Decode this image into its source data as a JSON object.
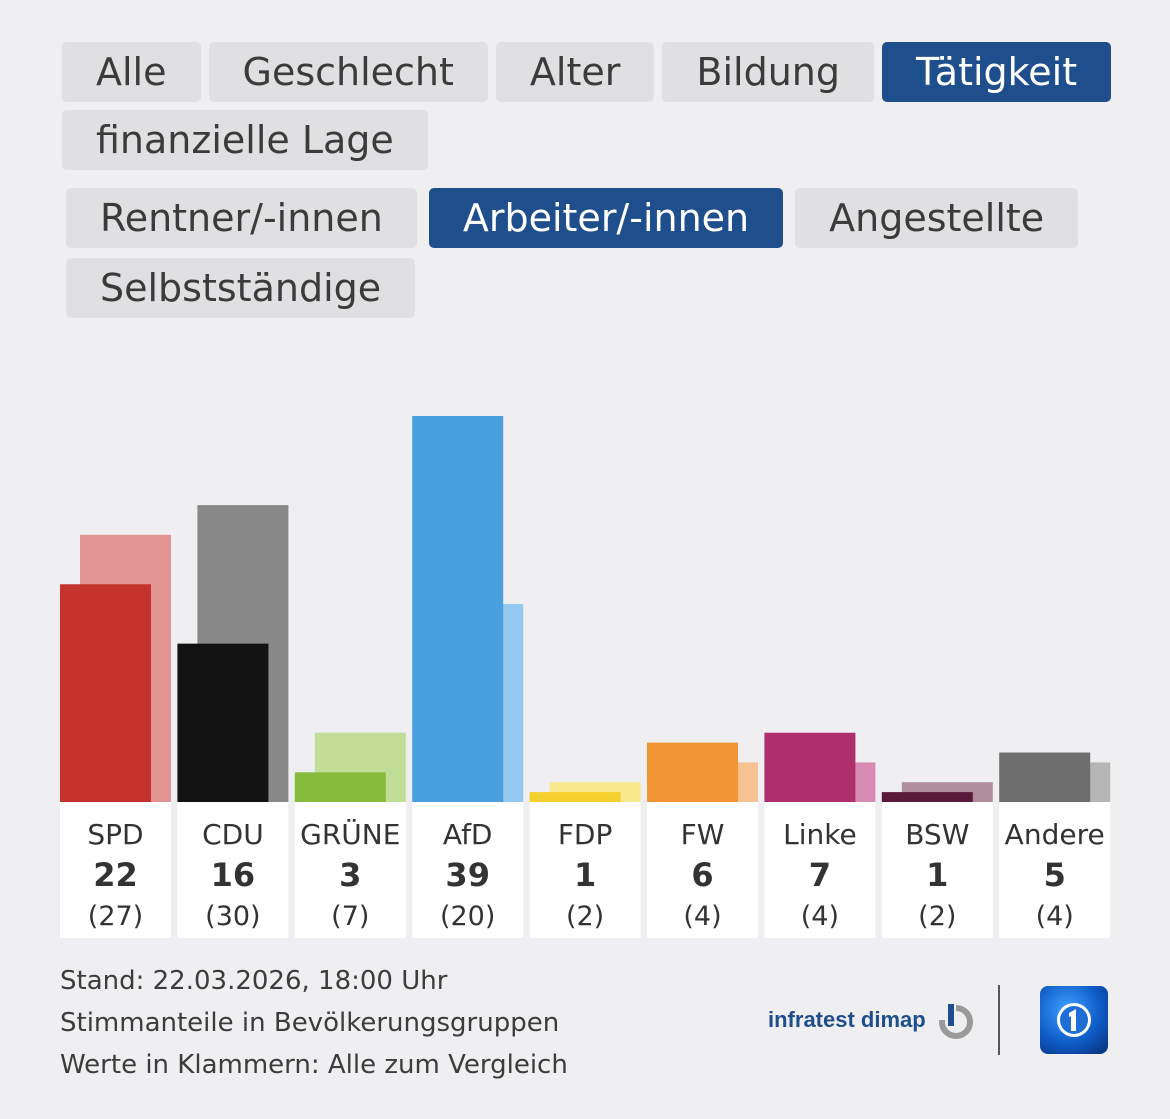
{
  "tabs_main": [
    {
      "label": "Alle",
      "active": false
    },
    {
      "label": "Geschlecht",
      "active": false
    },
    {
      "label": "Alter",
      "active": false
    },
    {
      "label": "Bildung",
      "active": false
    },
    {
      "label": "Tätigkeit",
      "active": true
    },
    {
      "label": "finanzielle Lage",
      "active": false
    }
  ],
  "tabs_sub": [
    {
      "label": "Rentner/-innen",
      "active": false
    },
    {
      "label": "Arbeiter/-innen",
      "active": true
    },
    {
      "label": "Angestellte",
      "active": false
    },
    {
      "label": "Selbstständige",
      "active": false
    }
  ],
  "chart_data": {
    "type": "bar",
    "categories": [
      "SPD",
      "CDU",
      "GRÜNE",
      "AfD",
      "FDP",
      "FW",
      "Linke",
      "BSW",
      "Andere"
    ],
    "series": [
      {
        "values": [
          22,
          16,
          3,
          39,
          1,
          6,
          7,
          1,
          5
        ]
      },
      {
        "values": [
          27,
          30,
          7,
          20,
          2,
          4,
          4,
          2,
          4
        ]
      }
    ],
    "value_labels": [
      "22",
      "16",
      "3",
      "39",
      "1",
      "6",
      "7",
      "1",
      "5"
    ],
    "comparison_labels": [
      "(27)",
      "(30)",
      "(7)",
      "(20)",
      "(2)",
      "(4)",
      "(4)",
      "(2)",
      "(4)"
    ],
    "colors": [
      "#c4332c",
      "#121212",
      "#87bb3c",
      "#4a9fdf",
      "#f4d02e",
      "#f19433",
      "#ad2f6c",
      "#5a1b3a",
      "#6e6e6e"
    ],
    "comparison_colors": [
      "#e19492",
      "#888888",
      "#c2de96",
      "#93c9f0",
      "#fae88d",
      "#f7c291",
      "#d88cb4",
      "#b08c9c",
      "#b5b5b5"
    ],
    "ylim": [
      0,
      39
    ]
  },
  "footer": {
    "stand": "Stand: 22.03.2026, 18:00 Uhr",
    "line2": "Stimmanteile in Bevölkerungsgruppen",
    "line3": "Werte in Klammern: Alle zum Vergleich"
  },
  "logos": {
    "infratest": "infratest dimap",
    "infratest_icon": "infratest-dimap-logo-icon",
    "ard_icon": "ard-tagesschau-logo-icon"
  }
}
